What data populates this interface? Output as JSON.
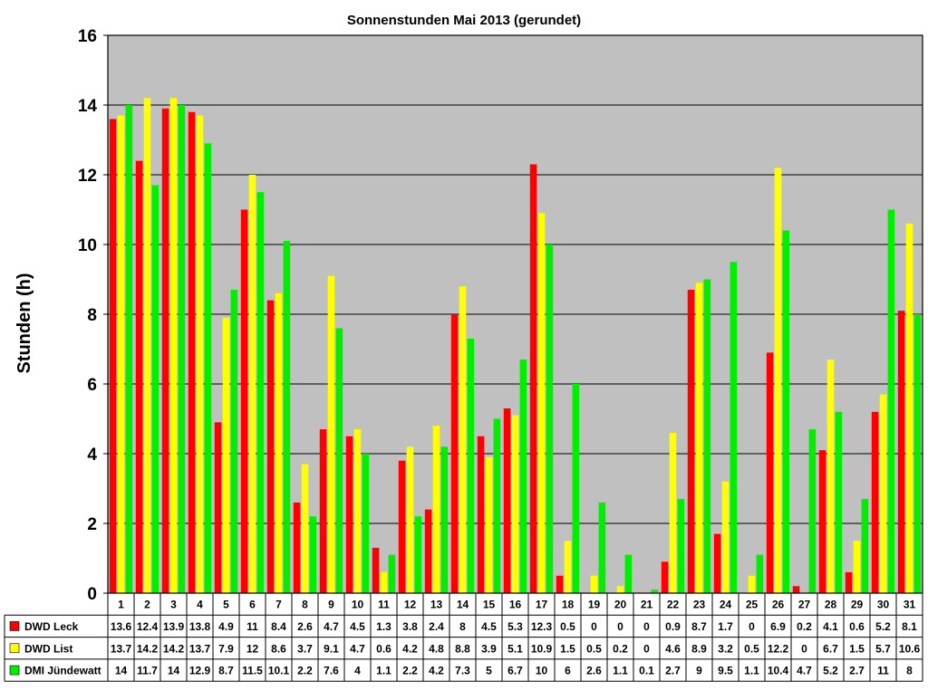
{
  "chart_data": {
    "type": "bar",
    "title": "Sonnenstunden Mai 2013 (gerundet)",
    "xlabel": "",
    "ylabel": "Stunden (h)",
    "ylim": [
      0,
      16
    ],
    "yticks": [
      0,
      2,
      4,
      6,
      8,
      10,
      12,
      14,
      16
    ],
    "grid": true,
    "plot_background": "#c0c0c0",
    "legend_placement": "data-table-left",
    "categories": [
      "1",
      "2",
      "3",
      "4",
      "5",
      "6",
      "7",
      "8",
      "9",
      "10",
      "11",
      "12",
      "13",
      "14",
      "15",
      "16",
      "17",
      "18",
      "19",
      "20",
      "21",
      "22",
      "23",
      "24",
      "25",
      "26",
      "27",
      "28",
      "29",
      "30",
      "31"
    ],
    "series": [
      {
        "name": "DWD Leck",
        "color": "#ff0000",
        "values": [
          13.6,
          12.4,
          13.9,
          13.8,
          4.9,
          11,
          8.4,
          2.6,
          4.7,
          4.5,
          1.3,
          3.8,
          2.4,
          8,
          4.5,
          5.3,
          12.3,
          0.5,
          0,
          0,
          0,
          0.9,
          8.7,
          1.7,
          0,
          6.9,
          0.2,
          4.1,
          0.6,
          5.2,
          8.1
        ],
        "labels": [
          "13.6",
          "12.4",
          "13.9",
          "13.8",
          "4.9",
          "11",
          "8.4",
          "2.6",
          "4.7",
          "4.5",
          "1.3",
          "3.8",
          "2.4",
          "8",
          "4.5",
          "5.3",
          "12.3",
          "0.5",
          "0",
          "0",
          "0",
          "0.9",
          "8.7",
          "1.7",
          "0",
          "6.9",
          "0.2",
          "4.1",
          "0.6",
          "5.2",
          "8.1"
        ]
      },
      {
        "name": "DWD List",
        "color": "#ffff00",
        "values": [
          13.7,
          14.2,
          14.2,
          13.7,
          7.9,
          12,
          8.6,
          3.7,
          9.1,
          4.7,
          0.6,
          4.2,
          4.8,
          8.8,
          3.9,
          5.1,
          10.9,
          1.5,
          0.5,
          0.2,
          0,
          4.6,
          8.9,
          3.2,
          0.5,
          12.2,
          0,
          6.7,
          1.5,
          5.7,
          10.6
        ],
        "labels": [
          "13.7",
          "14.2",
          "14.2",
          "13.7",
          "7.9",
          "12",
          "8.6",
          "3.7",
          "9.1",
          "4.7",
          "0.6",
          "4.2",
          "4.8",
          "8.8",
          "3.9",
          "5.1",
          "10.9",
          "1.5",
          "0.5",
          "0.2",
          "0",
          "4.6",
          "8.9",
          "3.2",
          "0.5",
          "12.2",
          "0",
          "6.7",
          "1.5",
          "5.7",
          "10.6"
        ]
      },
      {
        "name": "DMI Jündewatt",
        "color": "#00ee00",
        "values": [
          14,
          11.7,
          14,
          12.9,
          8.7,
          11.5,
          10.1,
          2.2,
          7.6,
          4,
          1.1,
          2.2,
          4.2,
          7.3,
          5,
          6.7,
          10,
          6,
          2.6,
          1.1,
          0.1,
          2.7,
          9,
          9.5,
          1.1,
          10.4,
          4.7,
          5.2,
          2.7,
          11,
          8
        ],
        "labels": [
          "14",
          "11.7",
          "14",
          "12.9",
          "8.7",
          "11.5",
          "10.1",
          "2.2",
          "7.6",
          "4",
          "1.1",
          "2.2",
          "4.2",
          "7.3",
          "5",
          "6.7",
          "10",
          "6",
          "2.6",
          "1.1",
          "0.1",
          "2.7",
          "9",
          "9.5",
          "1.1",
          "10.4",
          "4.7",
          "5.2",
          "2.7",
          "11",
          "8"
        ]
      }
    ]
  }
}
